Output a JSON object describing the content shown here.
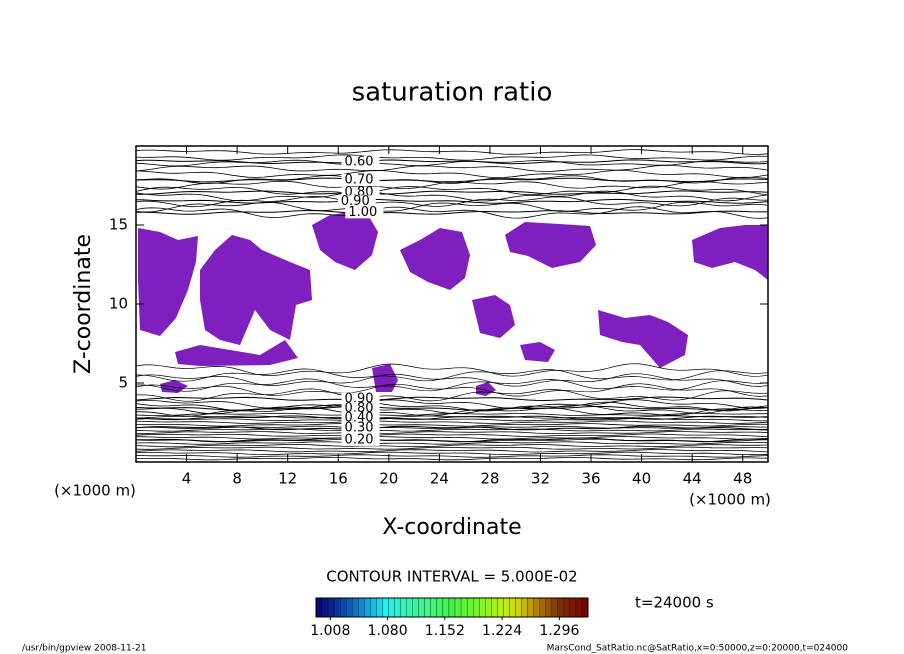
{
  "chart_data": {
    "type": "contour",
    "title": "saturation ratio",
    "x_label": "X-coordinate",
    "y_label": "Z-coordinate",
    "x_unit": "(×1000 m)",
    "y_unit": "(×1000 m)",
    "xlim": [
      0,
      50
    ],
    "ylim": [
      0,
      20
    ],
    "xticks": [
      4,
      8,
      12,
      16,
      20,
      24,
      28,
      32,
      36,
      40,
      44,
      48
    ],
    "yticks": [
      5,
      10,
      15
    ],
    "contours": [
      {
        "value": 0.6,
        "label": "0.60",
        "x": 16.5,
        "z": 19.0
      },
      {
        "value": 0.7,
        "label": "0.70",
        "x": 16.5,
        "z": 17.85
      },
      {
        "value": 0.8,
        "label": "0.80",
        "x": 16.5,
        "z": 17.05
      },
      {
        "value": 0.9,
        "label": "0.90",
        "x": 16.2,
        "z": 16.5
      },
      {
        "value": 1.0,
        "label": "1.00",
        "x": 16.8,
        "z": 15.8
      },
      {
        "value": 0.9,
        "label": "0.90",
        "x": 16.5,
        "z": 4.0
      },
      {
        "value": 0.8,
        "label": "0.80",
        "x": 16.5,
        "z": 3.4
      },
      {
        "value": 0.4,
        "label": "0.40",
        "x": 16.5,
        "z": 2.8
      },
      {
        "value": 0.3,
        "label": "0.30",
        "x": 16.5,
        "z": 2.15
      },
      {
        "value": 0.2,
        "label": "0.20",
        "x": 16.5,
        "z": 1.4
      }
    ],
    "contour_interval": "CONTOUR INTERVAL = 5.000E-02",
    "fill_color": "#7f1fbf",
    "clim": [
      0.99,
      1.332
    ],
    "cticks": [
      {
        "value": 1.008,
        "label": "1.008"
      },
      {
        "value": 1.08,
        "label": "1.080"
      },
      {
        "value": 1.152,
        "label": "1.152"
      },
      {
        "value": 1.224,
        "label": "1.224"
      },
      {
        "value": 1.296,
        "label": "1.296"
      }
    ],
    "time_label": "t=24000 s",
    "footer_left": "/usr/bin/gpview   2008-11-21",
    "footer_right": "MarsCond_SatRatio.nc@SatRatio,x=0:50000,z=0:20000,t=024000"
  }
}
